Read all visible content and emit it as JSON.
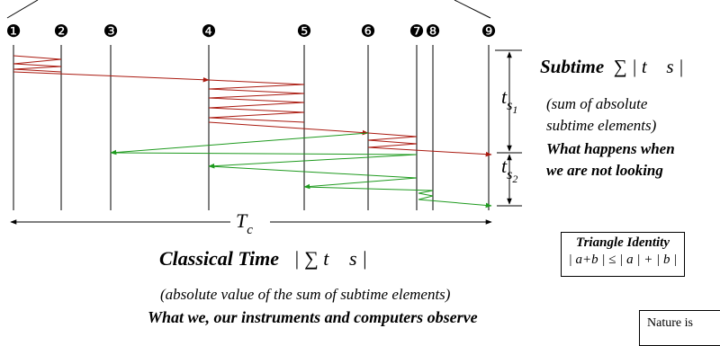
{
  "markers": [
    "❶",
    "❷",
    "❸",
    "❹",
    "❺",
    "❻",
    "❼",
    "❽",
    "❾"
  ],
  "labels": {
    "ts1_base": "t",
    "ts1_sub": "s",
    "ts1_subsub": "1",
    "ts2_base": "t",
    "ts2_sub": "s",
    "ts2_subsub": "2",
    "tc_base": "T",
    "tc_sub": "c"
  },
  "subtime": {
    "title": "Subtime",
    "formula": "∑ | t⃗ s |",
    "note_line1": "(sum of absolute",
    "note_line2": "subtime elements)",
    "punch_line1": "What happens when",
    "punch_line2": "we are not looking"
  },
  "classical": {
    "title": "Classical Time",
    "formula": "| ∑ t⃗ s |",
    "note": "(absolute value of the sum of subtime elements)",
    "punch": "What we, our instruments and computers observe"
  },
  "triangle": {
    "title": "Triangle Identity",
    "formula": "| a+b |  ≤  | a | + | b |"
  },
  "nature": {
    "text": "Nature is"
  },
  "colors": {
    "forward": "#aa1a10",
    "backward": "#1e9a1e",
    "ink": "#000000"
  }
}
